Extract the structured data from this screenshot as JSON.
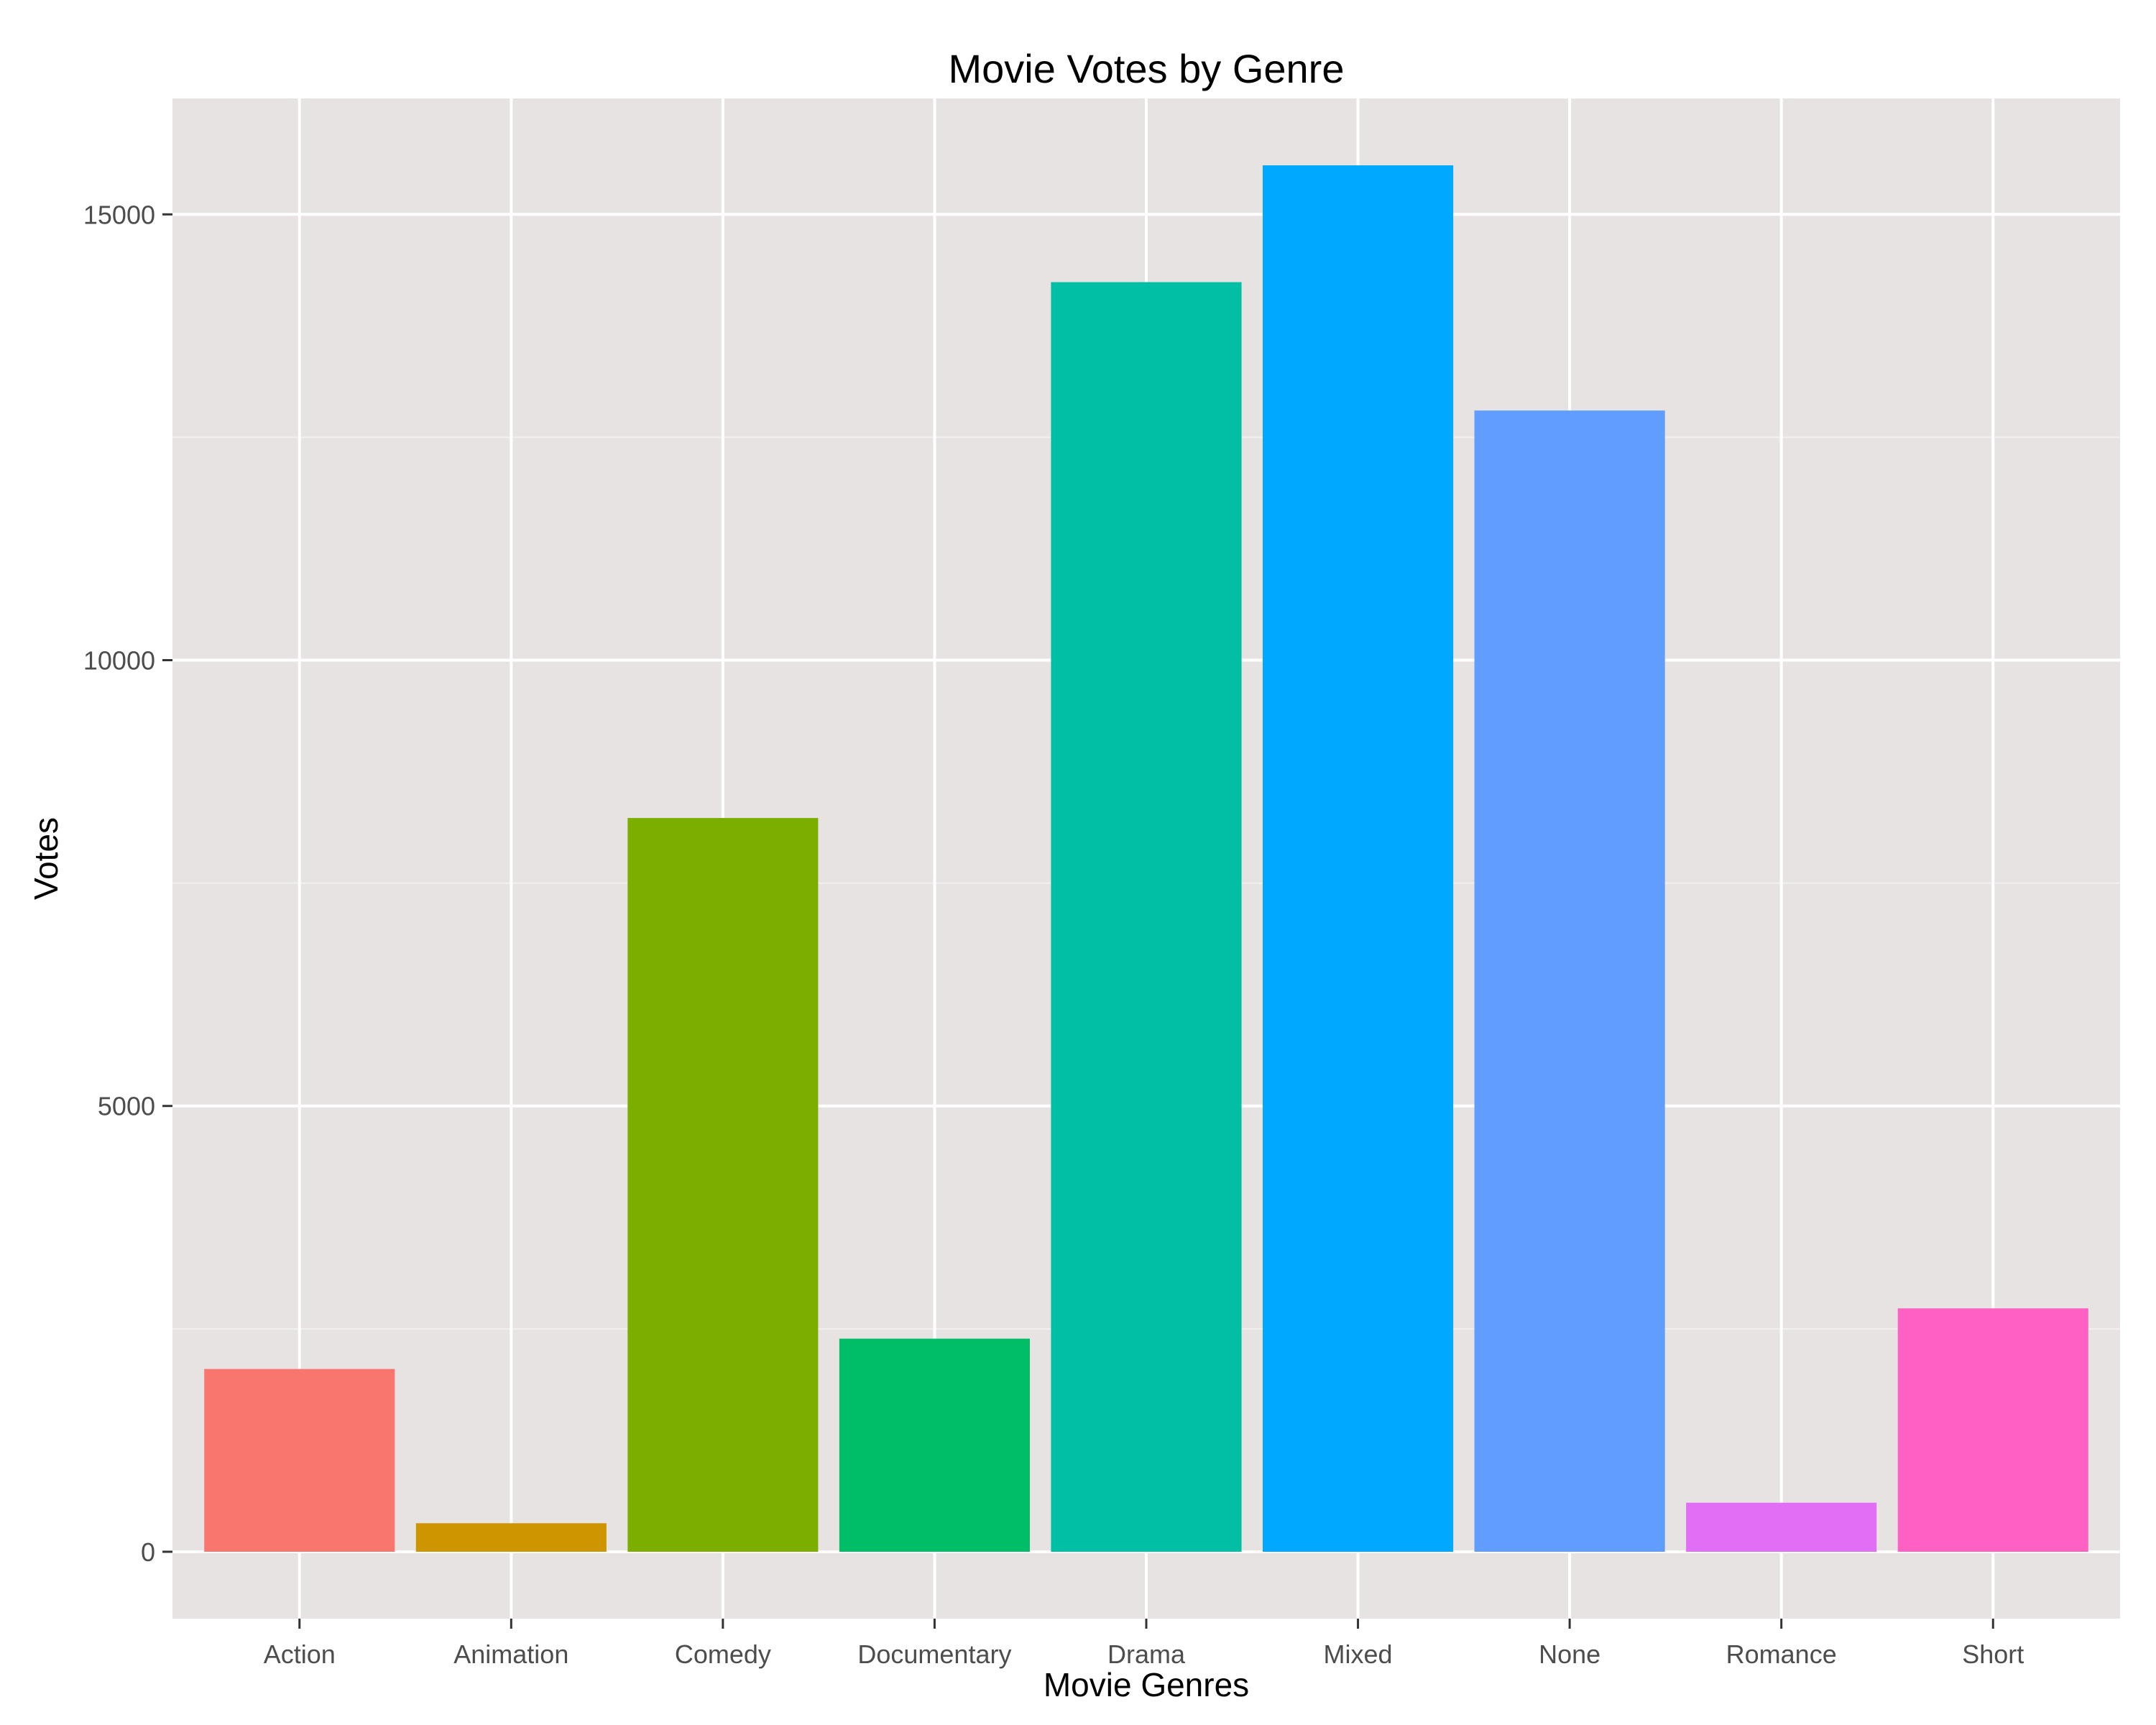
{
  "chart_data": {
    "type": "bar",
    "title": "Movie Votes by Genre",
    "xlabel": "Movie Genres",
    "ylabel": "Votes",
    "categories": [
      "Action",
      "Animation",
      "Comedy",
      "Documentary",
      "Drama",
      "Mixed",
      "None",
      "Romance",
      "Short"
    ],
    "values": [
      2050,
      320,
      8230,
      2390,
      14240,
      15550,
      12800,
      550,
      2730
    ],
    "colors": [
      "#F8766D",
      "#CD9600",
      "#7CAE00",
      "#00BE67",
      "#00BFA4",
      "#00A9FF",
      "#619CFF",
      "#E36EF6",
      "#FF61C3"
    ],
    "yticks": [
      0,
      5000,
      10000,
      15000
    ],
    "ylim": [
      -750,
      16300
    ],
    "grid": true,
    "legend": "none",
    "panel_background": "#E8E3E3",
    "grid_color": "#FFFFFF"
  }
}
